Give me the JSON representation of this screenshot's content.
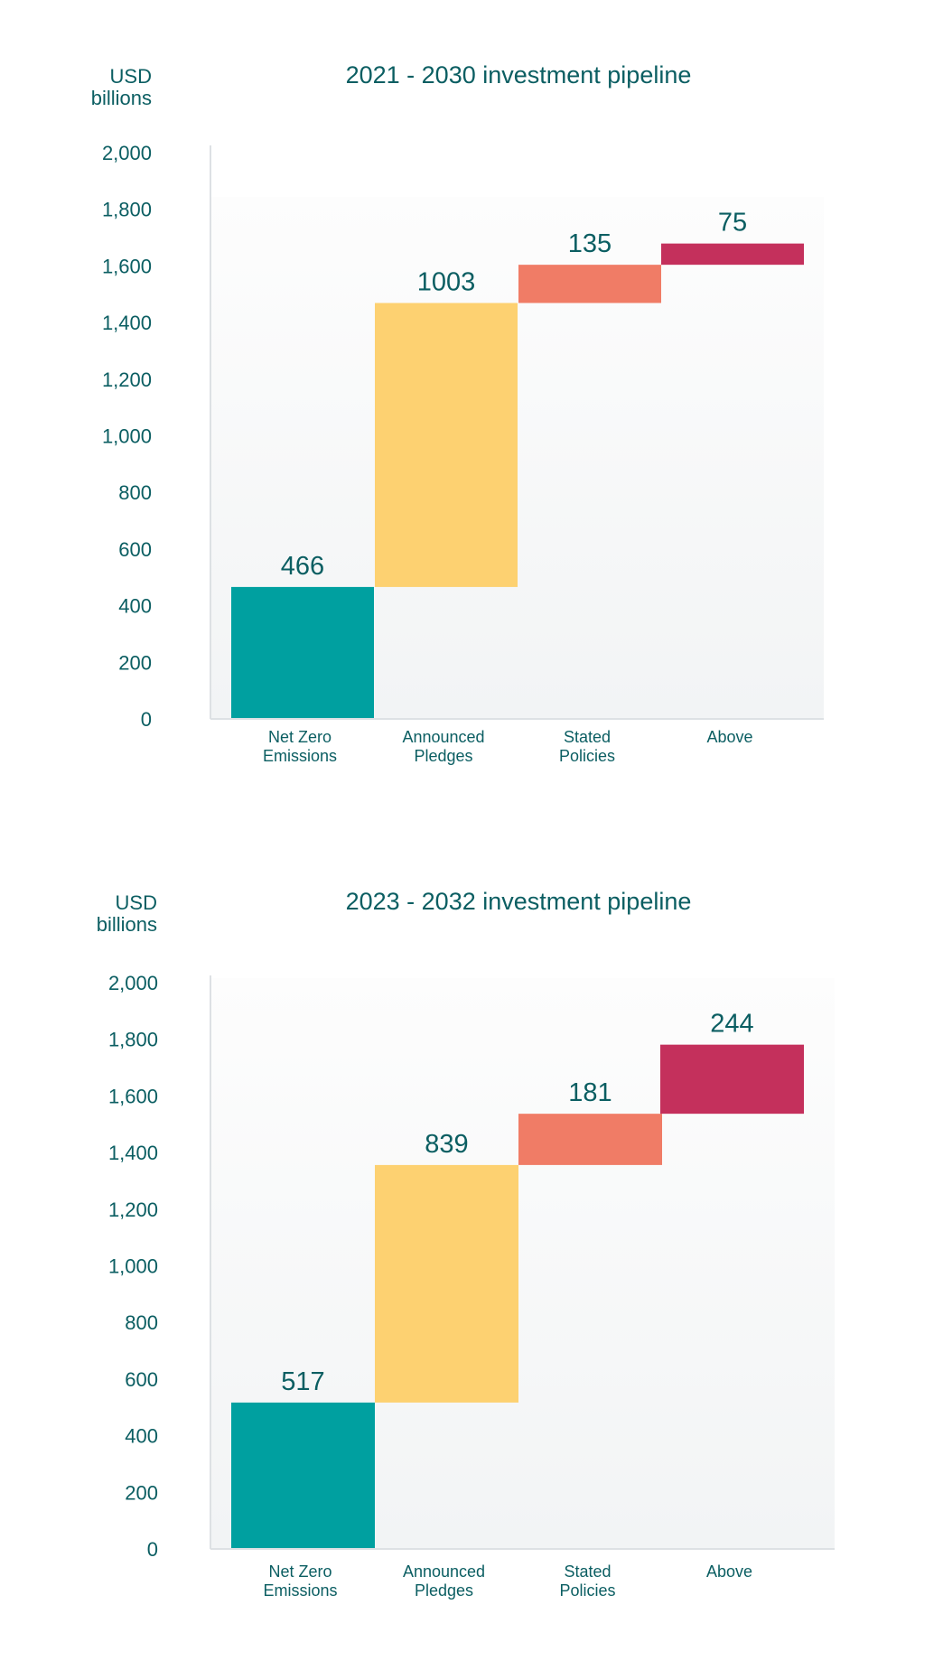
{
  "colors": {
    "text": "#0b5e62",
    "axis": "#dde1e4",
    "plot_bg_top": "#fdfdfd",
    "plot_bg_bottom": "#f2f4f5"
  },
  "chart_data": [
    {
      "type": "bar",
      "subtype": "waterfall",
      "title": "2021 - 2030 investment pipeline",
      "ylabel_line1": "USD",
      "ylabel_line2": "billions",
      "ylim": [
        0,
        2000
      ],
      "yticks": [
        0,
        200,
        400,
        600,
        800,
        1000,
        1200,
        1400,
        1600,
        1800,
        2000
      ],
      "ytick_labels": [
        "0",
        "200",
        "400",
        "600",
        "800",
        "1,000",
        "1,200",
        "1,400",
        "1,600",
        "1,800",
        "2,000"
      ],
      "categories": [
        {
          "line1": "Net Zero",
          "line2": "Emissions"
        },
        {
          "line1": "Announced",
          "line2": "Pledges"
        },
        {
          "line1": "Stated",
          "line2": "Policies"
        },
        {
          "line1": "Above",
          "line2": ""
        }
      ],
      "values": [
        466,
        1003,
        135,
        75
      ],
      "value_labels": [
        "466",
        "1003",
        "135",
        "75"
      ],
      "bar_colors": [
        "#00a0a0",
        "#fdd171",
        "#f07c66",
        "#c4305c"
      ],
      "grid": false
    },
    {
      "type": "bar",
      "subtype": "waterfall",
      "title": "2023 - 2032 investment pipeline",
      "ylabel_line1": "USD",
      "ylabel_line2": "billions",
      "ylim": [
        0,
        2000
      ],
      "yticks": [
        0,
        200,
        400,
        600,
        800,
        1000,
        1200,
        1400,
        1600,
        1800,
        2000
      ],
      "ytick_labels": [
        "0",
        "200",
        "400",
        "600",
        "800",
        "1,000",
        "1,200",
        "1,400",
        "1,600",
        "1,800",
        "2,000"
      ],
      "categories": [
        {
          "line1": "Net Zero",
          "line2": "Emissions"
        },
        {
          "line1": "Announced",
          "line2": "Pledges"
        },
        {
          "line1": "Stated",
          "line2": "Policies"
        },
        {
          "line1": "Above",
          "line2": ""
        }
      ],
      "values": [
        517,
        839,
        181,
        244
      ],
      "value_labels": [
        "517",
        "839",
        "181",
        "244"
      ],
      "bar_colors": [
        "#00a0a0",
        "#fdd171",
        "#f07c66",
        "#c4305c"
      ],
      "grid": false
    }
  ]
}
